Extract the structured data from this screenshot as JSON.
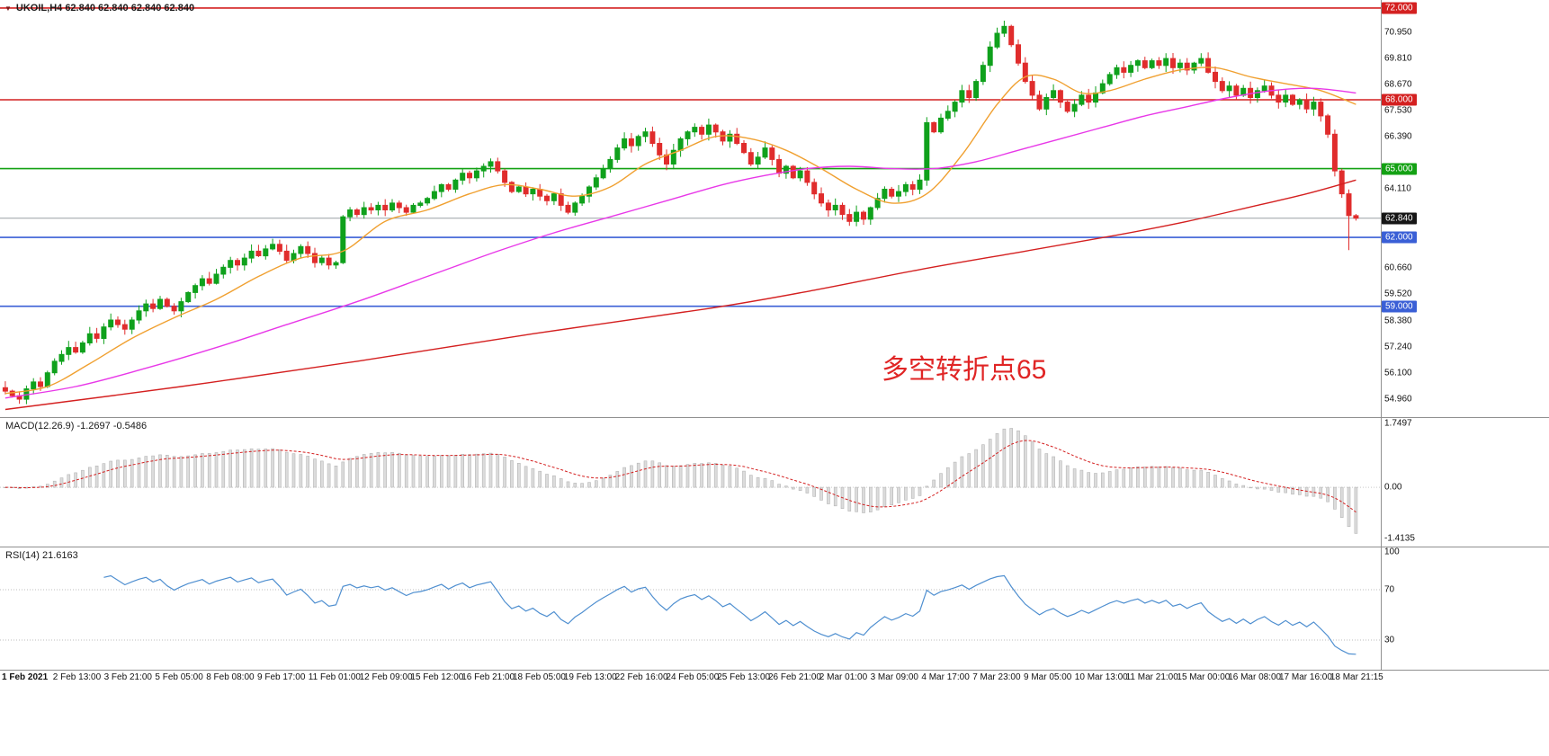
{
  "window": {
    "symbol_title": "UKOIL,H4 62.840 62.840 62.840 62.840",
    "annotation": "多空转折点65"
  },
  "colors": {
    "up": "#0fa11c",
    "down": "#e02c2c",
    "ma_fast": "#f0a030",
    "ma_mid": "#e838e8",
    "ma_slow": "#d42020",
    "level_red": "#d42020",
    "level_green": "#13a113",
    "level_blue": "#3a5fd6",
    "current_line": "#9aa0a6",
    "macd_hist_fill": "#dcdcdc",
    "macd_hist_stroke": "#b5b5b5",
    "macd_signal": "#d42020",
    "rsi": "#4f8fd0",
    "annotation": "#e02525"
  },
  "indicators": {
    "macd": {
      "label": "MACD(12.26.9) -1.2697 -0.5486"
    },
    "rsi": {
      "label": "RSI(14) 21.6163"
    }
  },
  "chart_data": {
    "type": "candlestick+macd+rsi",
    "symbol": "UKOIL",
    "timeframe": "H4",
    "current_price": 62.84,
    "y_axis": {
      "ticks": [
        {
          "text": "70.950",
          "price": 70.95
        },
        {
          "text": "69.810",
          "price": 69.81
        },
        {
          "text": "68.670",
          "price": 68.67
        },
        {
          "text": "67.530",
          "price": 67.53
        },
        {
          "text": "66.390",
          "price": 66.39
        },
        {
          "text": "64.110",
          "price": 64.11
        },
        {
          "text": "60.660",
          "price": 60.66
        },
        {
          "text": "59.520",
          "price": 59.52
        },
        {
          "text": "58.380",
          "price": 58.38
        },
        {
          "text": "57.240",
          "price": 57.24
        },
        {
          "text": "56.100",
          "price": 56.1
        },
        {
          "text": "54.960",
          "price": 54.96
        }
      ]
    },
    "levels": [
      {
        "label": "72.000",
        "price": 72.0,
        "style": "red",
        "line": "level"
      },
      {
        "label": "68.000",
        "price": 68.0,
        "style": "red",
        "line": "level"
      },
      {
        "label": "65.000",
        "price": 65.0,
        "style": "green",
        "line": "level"
      },
      {
        "label": "62.840",
        "price": 62.84,
        "style": "black",
        "line": "current"
      },
      {
        "label": "62.000",
        "price": 62.0,
        "style": "blue",
        "line": "level"
      },
      {
        "label": "59.000",
        "price": 59.0,
        "style": "blue",
        "line": "level"
      }
    ],
    "x_axis": {
      "labels": [
        "1 Feb 2021",
        "2 Feb 13:00",
        "3 Feb 21:00",
        "5 Feb 05:00",
        "8 Feb 08:00",
        "9 Feb 17:00",
        "11 Feb 01:00",
        "12 Feb 09:00",
        "15 Feb 12:00",
        "16 Feb 21:00",
        "18 Feb 05:00",
        "19 Feb 13:00",
        "22 Feb 16:00",
        "24 Feb 05:00",
        "25 Feb 13:00",
        "26 Feb 21:00",
        "2 Mar 01:00",
        "3 Mar 09:00",
        "4 Mar 17:00",
        "7 Mar 23:00",
        "9 Mar 05:00",
        "10 Mar 13:00",
        "11 Mar 21:00",
        "15 Mar 00:00",
        "16 Mar 08:00",
        "17 Mar 16:00",
        "18 Mar 21:15"
      ]
    },
    "series": {
      "first_open": 55.45,
      "closes": [
        55.3,
        55.1,
        54.95,
        55.4,
        55.7,
        55.5,
        56.1,
        56.6,
        56.9,
        57.2,
        57.0,
        57.4,
        57.8,
        57.6,
        58.1,
        58.4,
        58.2,
        58.0,
        58.4,
        58.8,
        59.1,
        58.9,
        59.3,
        59.0,
        58.8,
        59.2,
        59.6,
        59.9,
        60.2,
        60.0,
        60.4,
        60.7,
        61.0,
        60.8,
        61.1,
        61.4,
        61.2,
        61.5,
        61.7,
        61.4,
        61.0,
        61.3,
        61.6,
        61.3,
        60.9,
        61.1,
        60.8,
        60.9,
        62.9,
        63.2,
        63.0,
        63.3,
        63.2,
        63.4,
        63.2,
        63.5,
        63.3,
        63.1,
        63.4,
        63.5,
        63.7,
        64.0,
        64.3,
        64.1,
        64.5,
        64.8,
        64.6,
        64.9,
        65.1,
        65.3,
        64.9,
        64.4,
        64.0,
        64.2,
        63.9,
        64.1,
        63.8,
        63.6,
        63.9,
        63.4,
        63.1,
        63.5,
        63.8,
        64.2,
        64.6,
        65.0,
        65.4,
        65.9,
        66.3,
        66.0,
        66.4,
        66.6,
        66.1,
        65.6,
        65.2,
        65.8,
        66.3,
        66.6,
        66.8,
        66.5,
        66.9,
        66.6,
        66.2,
        66.5,
        66.1,
        65.7,
        65.2,
        65.5,
        65.9,
        65.4,
        64.8,
        65.1,
        64.6,
        64.9,
        64.4,
        63.9,
        63.5,
        63.2,
        63.4,
        63.0,
        62.7,
        63.1,
        62.8,
        63.3,
        63.7,
        64.1,
        63.8,
        64.0,
        64.3,
        64.1,
        64.5,
        67.0,
        66.6,
        67.2,
        67.5,
        67.9,
        68.4,
        68.1,
        68.8,
        69.5,
        70.3,
        70.9,
        71.2,
        70.4,
        69.6,
        68.8,
        68.2,
        67.6,
        68.1,
        68.4,
        67.9,
        67.5,
        67.8,
        68.2,
        67.9,
        68.3,
        68.7,
        69.1,
        69.4,
        69.2,
        69.5,
        69.7,
        69.4,
        69.7,
        69.5,
        69.8,
        69.4,
        69.6,
        69.3,
        69.6,
        69.8,
        69.2,
        68.8,
        68.4,
        68.6,
        68.2,
        68.5,
        68.1,
        68.4,
        68.6,
        68.2,
        67.9,
        68.2,
        67.8,
        68.0,
        67.6,
        67.9,
        67.3,
        66.5,
        64.9,
        63.9,
        62.95,
        62.84
      ],
      "wick_overrides": {
        "2": {
          "low": 54.75
        },
        "142": {
          "high": 71.45
        },
        "191": {
          "low": 61.45
        }
      }
    },
    "moving_averages": [
      {
        "name": "fast-orange",
        "color_key": "ma_fast",
        "anchors": [
          [
            0,
            55.2
          ],
          [
            6,
            55.5
          ],
          [
            12,
            56.5
          ],
          [
            18,
            57.6
          ],
          [
            24,
            58.5
          ],
          [
            30,
            59.3
          ],
          [
            36,
            60.3
          ],
          [
            42,
            61.1
          ],
          [
            48,
            61.4
          ],
          [
            54,
            62.7
          ],
          [
            60,
            63.2
          ],
          [
            66,
            63.9
          ],
          [
            71,
            64.3
          ],
          [
            76,
            64.1
          ],
          [
            81,
            63.8
          ],
          [
            86,
            64.2
          ],
          [
            91,
            65.2
          ],
          [
            96,
            65.8
          ],
          [
            101,
            66.4
          ],
          [
            106,
            66.3
          ],
          [
            111,
            65.8
          ],
          [
            116,
            65.0
          ],
          [
            121,
            64.1
          ],
          [
            126,
            63.5
          ],
          [
            131,
            63.9
          ],
          [
            136,
            65.6
          ],
          [
            141,
            67.8
          ],
          [
            145,
            69.0
          ],
          [
            149,
            68.9
          ],
          [
            153,
            68.3
          ],
          [
            157,
            68.4
          ],
          [
            162,
            68.9
          ],
          [
            167,
            69.3
          ],
          [
            172,
            69.4
          ],
          [
            177,
            69.0
          ],
          [
            182,
            68.7
          ],
          [
            187,
            68.4
          ],
          [
            192,
            67.8
          ]
        ]
      },
      {
        "name": "mid-magenta",
        "color_key": "ma_mid",
        "anchors": [
          [
            0,
            55.0
          ],
          [
            10,
            55.5
          ],
          [
            20,
            56.3
          ],
          [
            30,
            57.2
          ],
          [
            40,
            58.2
          ],
          [
            50,
            59.2
          ],
          [
            60,
            60.3
          ],
          [
            70,
            61.4
          ],
          [
            78,
            62.2
          ],
          [
            86,
            62.9
          ],
          [
            94,
            63.6
          ],
          [
            102,
            64.3
          ],
          [
            108,
            64.7
          ],
          [
            114,
            65.0
          ],
          [
            120,
            65.1
          ],
          [
            126,
            65.0
          ],
          [
            132,
            65.0
          ],
          [
            138,
            65.3
          ],
          [
            144,
            65.8
          ],
          [
            150,
            66.3
          ],
          [
            156,
            66.8
          ],
          [
            162,
            67.3
          ],
          [
            168,
            67.7
          ],
          [
            174,
            68.1
          ],
          [
            180,
            68.4
          ],
          [
            186,
            68.5
          ],
          [
            192,
            68.3
          ]
        ]
      },
      {
        "name": "slow-red",
        "color_key": "ma_slow",
        "anchors": [
          [
            0,
            54.5
          ],
          [
            25,
            55.5
          ],
          [
            50,
            56.6
          ],
          [
            75,
            57.8
          ],
          [
            100,
            58.9
          ],
          [
            115,
            59.7
          ],
          [
            130,
            60.6
          ],
          [
            145,
            61.4
          ],
          [
            158,
            62.1
          ],
          [
            168,
            62.7
          ],
          [
            178,
            63.4
          ],
          [
            185,
            63.9
          ],
          [
            192,
            64.5
          ]
        ]
      }
    ],
    "macd": {
      "params": "12,26,9",
      "value": -1.2697,
      "signal": -0.5486,
      "computed_from": "closes",
      "axis": [
        {
          "text": "1.7497",
          "value": 1.7497
        },
        {
          "text": "0.00",
          "value": 0
        },
        {
          "text": "-1.4135",
          "value": -1.4135
        }
      ]
    },
    "rsi": {
      "period": 14,
      "value": 21.6163,
      "computed_from": "closes",
      "levels": [
        70,
        30
      ],
      "axis": [
        {
          "text": "100",
          "value": 100
        },
        {
          "text": "70",
          "value": 70
        },
        {
          "text": "30",
          "value": 30
        }
      ]
    }
  }
}
